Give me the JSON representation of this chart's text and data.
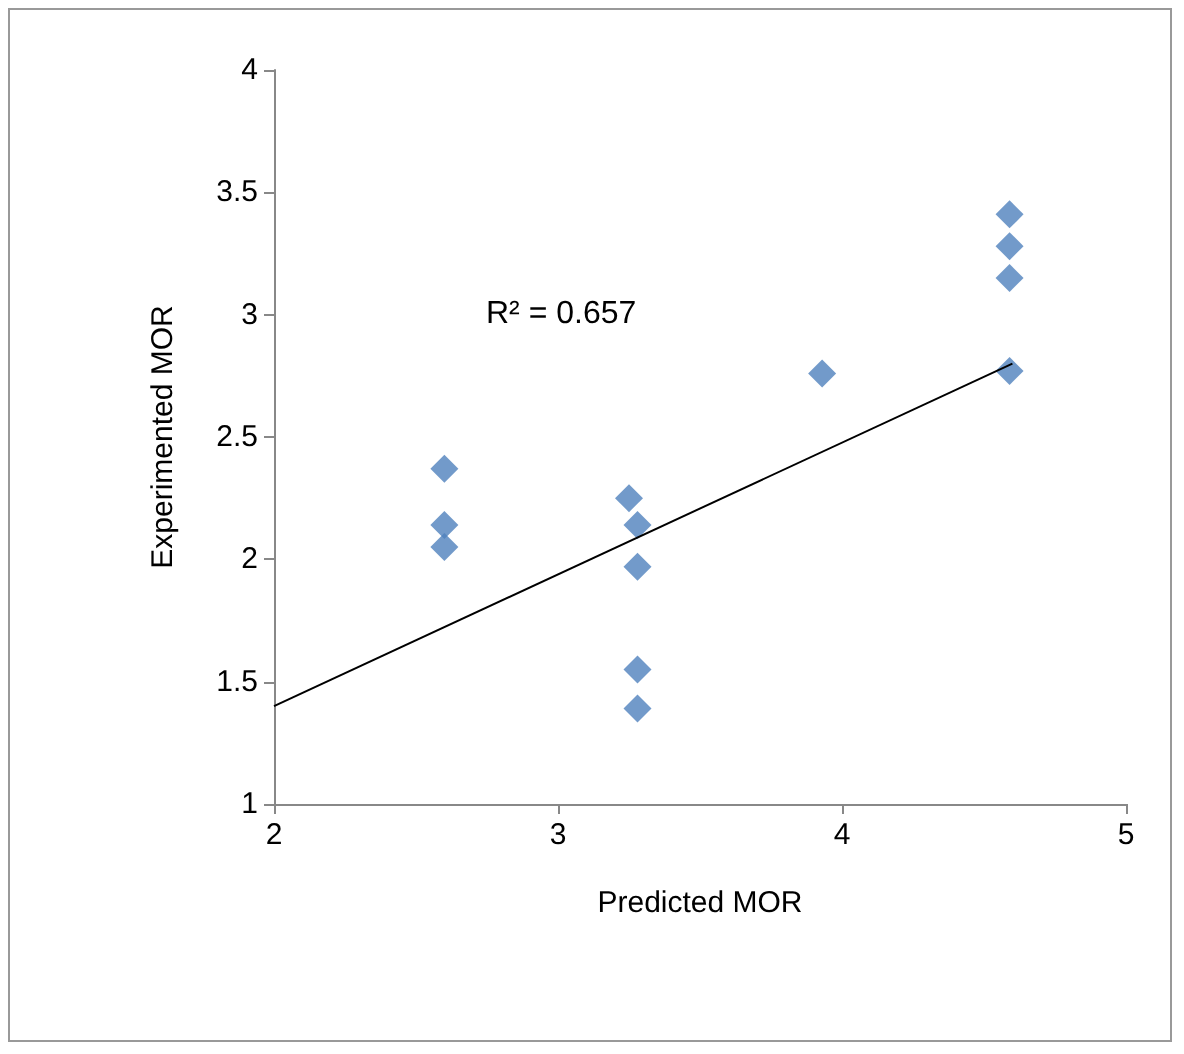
{
  "chart_data": {
    "type": "scatter",
    "xlabel": "Predicted MOR",
    "ylabel": "Experimented MOR",
    "xlim": [
      2,
      5
    ],
    "xticks": [
      2,
      3,
      4,
      5
    ],
    "ylim": [
      1,
      4
    ],
    "yticks": [
      1,
      1.5,
      2,
      2.5,
      3,
      3.5,
      4
    ],
    "grid": false,
    "marker": "diamond",
    "annotations": [
      "R² = 0.657"
    ],
    "series": [
      {
        "color": "#4f81bd",
        "x": [
          2.6,
          2.6,
          2.6,
          3.25,
          3.28,
          3.28,
          3.28,
          3.28,
          3.93,
          4.59,
          4.59,
          4.59,
          4.59
        ],
        "values": [
          2.37,
          2.14,
          2.05,
          2.25,
          2.14,
          1.97,
          1.55,
          1.39,
          2.76,
          3.41,
          3.28,
          3.15,
          2.77
        ]
      },
      {
        "type": "line",
        "color": "#000000",
        "line_style": "solid",
        "marker": "none",
        "x": [
          2,
          4.6
        ],
        "values": [
          1.4,
          2.8
        ]
      }
    ]
  }
}
